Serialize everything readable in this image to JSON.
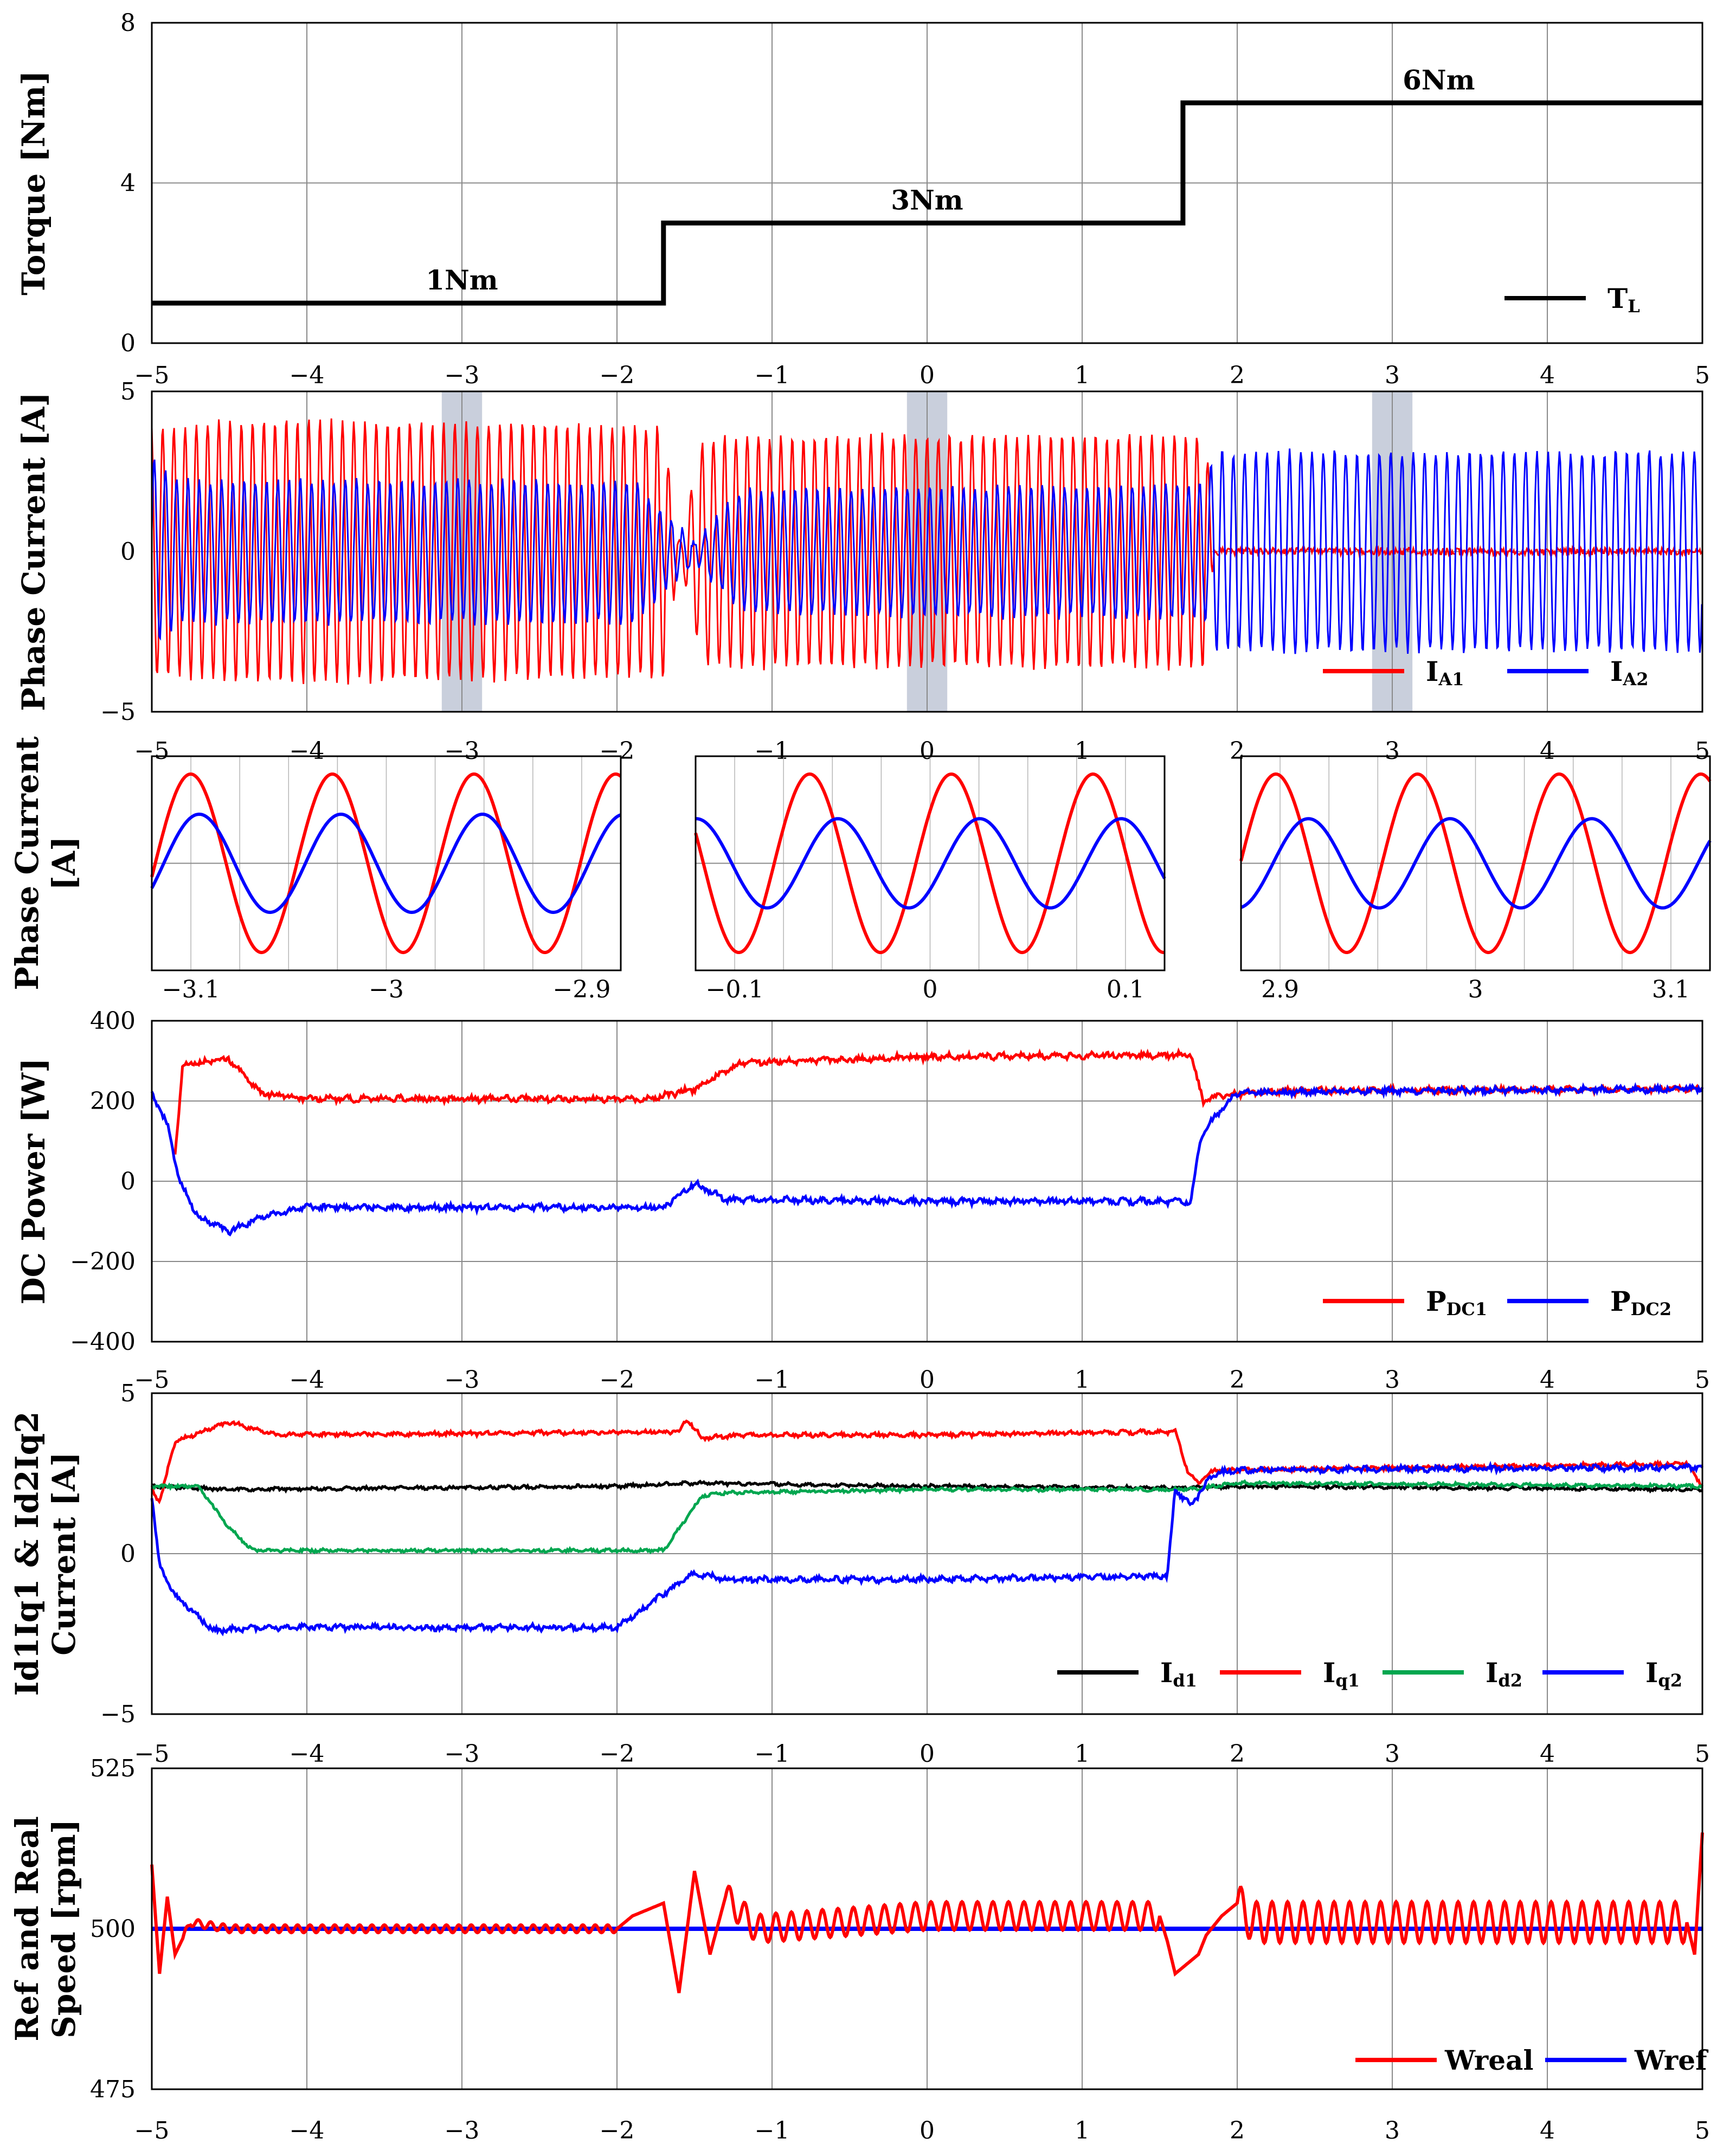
{
  "colors": {
    "red": "#ff0000",
    "blue": "#0000ff",
    "green": "#00a64f",
    "black": "#000000",
    "shade": "#c9cfdc",
    "grid": "#8a8a8a"
  },
  "chart_data": [
    {
      "id": "torque",
      "type": "line",
      "ylabel": "Torque [Nm]",
      "xlim": [
        -5,
        5
      ],
      "ylim": [
        0,
        8
      ],
      "xticks": [
        "−5",
        "−4",
        "−3",
        "−2",
        "−1",
        "0",
        "1",
        "2",
        "3",
        "4",
        "5"
      ],
      "yticks": [
        "0",
        "4",
        "8"
      ],
      "series": [
        {
          "name": "TL",
          "color": "#000000",
          "x": [
            -5,
            -1.7,
            -1.7,
            1.65,
            1.65,
            5
          ],
          "y": [
            1,
            1,
            3,
            3,
            6,
            6
          ]
        }
      ],
      "annotations": [
        {
          "text": "1Nm",
          "x": -3.0,
          "y": 1
        },
        {
          "text": "3Nm",
          "x": 0.0,
          "y": 3
        },
        {
          "text": "6Nm",
          "x": 3.3,
          "y": 6
        }
      ],
      "legend": [
        {
          "main": "T",
          "sub": "L",
          "color": "#000000"
        }
      ]
    },
    {
      "id": "phase",
      "type": "line",
      "ylabel": "Phase Current [A]",
      "xlim": [
        -5,
        5
      ],
      "ylim": [
        -5,
        5
      ],
      "xticks": [
        "−5",
        "−4",
        "−3",
        "−2",
        "−1",
        "0",
        "1",
        "2",
        "3",
        "4",
        "5"
      ],
      "yticks": [
        "−5",
        "0",
        "5"
      ],
      "series": [
        {
          "name": "IA1",
          "color": "#ff0000",
          "amplitude": [
            [
              -4.85,
              3.9
            ],
            [
              -4.5,
              4.1
            ],
            [
              -1.7,
              3.9
            ],
            [
              -1.6,
              0.2
            ],
            [
              -1.45,
              3.5
            ],
            [
              -1.2,
              3.6
            ],
            [
              1.8,
              3.6
            ],
            [
              1.85,
              0
            ]
          ]
        },
        {
          "name": "IA2",
          "color": "#0000ff",
          "amplitude": [
            [
              -5,
              2.9
            ],
            [
              -4.8,
              2.2
            ],
            [
              -1.9,
              2.2
            ],
            [
              -1.5,
              0.3
            ],
            [
              -1.2,
              1.9
            ],
            [
              1.8,
              2.1
            ],
            [
              1.85,
              3.1
            ],
            [
              5,
              3.1
            ]
          ]
        }
      ],
      "highlights": [
        [
          -3.13,
          -2.87
        ],
        [
          -0.13,
          0.13
        ],
        [
          2.87,
          3.13
        ]
      ],
      "legend": [
        {
          "main": "I",
          "sub": "A1",
          "color": "#ff0000"
        },
        {
          "main": "I",
          "sub": "A2",
          "color": "#0000ff"
        }
      ]
    },
    {
      "id": "zoom",
      "type": "line",
      "ylabel": "Phase Current [A]",
      "panels": [
        {
          "xlim": [
            -3.12,
            -2.88
          ],
          "ticks": [
            -3.1,
            -3.0,
            -2.9
          ],
          "tick_labels": [
            "−3.1",
            "−3",
            "−2.9"
          ],
          "red": {
            "amp": 1,
            "period": 0.0725,
            "phase": 0.01
          },
          "blue": {
            "amp": 0.55,
            "period": 0.0725,
            "phase": 0.95
          }
        },
        {
          "xlim": [
            -0.12,
            0.12
          ],
          "ticks": [
            -0.1,
            0.0,
            0.1
          ],
          "tick_labels": [
            "−0.1",
            "0",
            "0.1"
          ],
          "red": {
            "amp": 1,
            "period": 0.0725,
            "phase": 0.1
          },
          "blue": {
            "amp": 0.5,
            "period": 0.0725,
            "phase": 0.9
          }
        },
        {
          "xlim": [
            2.88,
            3.12
          ],
          "ticks": [
            2.9,
            3.0,
            3.1
          ],
          "tick_labels": [
            "2.9",
            "3",
            "3.1"
          ],
          "red": {
            "amp": 1,
            "period": 0.0725,
            "phase": 0.28
          },
          "blue": {
            "amp": 0.5,
            "period": 0.0725,
            "phase": 0.05
          }
        }
      ]
    },
    {
      "id": "dcpower",
      "type": "line",
      "ylabel": "DC Power [W]",
      "xlim": [
        -5,
        5
      ],
      "ylim": [
        -400,
        400
      ],
      "xticks": [
        "−5",
        "−4",
        "−3",
        "−2",
        "−1",
        "0",
        "1",
        "2",
        "3",
        "4",
        "5"
      ],
      "yticks": [
        "−400",
        "−200",
        "0",
        "200",
        "400"
      ],
      "series": [
        {
          "name": "PDC1",
          "color": "#ff0000",
          "x": [
            -4.85,
            -4.8,
            -4.5,
            -4.3,
            -4.0,
            -1.8,
            -1.5,
            -1.2,
            0,
            1.7,
            1.78,
            1.9,
            2.3,
            5
          ],
          "y": [
            70,
            290,
            305,
            220,
            205,
            205,
            230,
            295,
            310,
            315,
            200,
            215,
            225,
            230
          ]
        },
        {
          "name": "PDC2",
          "color": "#0000ff",
          "x": [
            -5,
            -4.9,
            -4.82,
            -4.7,
            -4.5,
            -4.3,
            -4.0,
            -1.7,
            -1.5,
            -1.3,
            0,
            1.7,
            1.76,
            1.85,
            2.0,
            3.0,
            5
          ],
          "y": [
            220,
            140,
            0,
            -90,
            -125,
            -90,
            -65,
            -65,
            -5,
            -45,
            -50,
            -50,
            100,
            160,
            220,
            225,
            230
          ]
        }
      ],
      "legend": [
        {
          "main": "P",
          "sub": "DC1",
          "color": "#ff0000"
        },
        {
          "main": "P",
          "sub": "DC2",
          "color": "#0000ff"
        }
      ]
    },
    {
      "id": "dq",
      "type": "line",
      "ylabel_lines": [
        "Id1Iq1 & Id2Iq2",
        "Current [A]"
      ],
      "xlim": [
        -5,
        5
      ],
      "ylim": [
        -5,
        5
      ],
      "xticks": [
        "−5",
        "−4",
        "−3",
        "−2",
        "−1",
        "0",
        "1",
        "2",
        "3",
        "4",
        "5"
      ],
      "yticks": [
        "−5",
        "0",
        "5"
      ],
      "series": [
        {
          "name": "Id1",
          "color": "#000000",
          "x": [
            -5,
            -4.5,
            -2,
            -1.5,
            0,
            1.6,
            2.0,
            5
          ],
          "y": [
            2.1,
            2.0,
            2.1,
            2.2,
            2.1,
            2.05,
            2.1,
            2.0
          ]
        },
        {
          "name": "Iq1",
          "color": "#ff0000",
          "x": [
            -5,
            -4.95,
            -4.85,
            -4.5,
            -4.2,
            -1.6,
            -1.55,
            -1.45,
            -1.2,
            0,
            1.6,
            1.68,
            1.75,
            1.85,
            2.0,
            4.9,
            5
          ],
          "y": [
            2.0,
            1.6,
            3.5,
            4.1,
            3.7,
            3.8,
            4.2,
            3.6,
            3.7,
            3.7,
            3.8,
            2.6,
            2.2,
            2.6,
            2.6,
            2.8,
            2.1
          ]
        },
        {
          "name": "Id2",
          "color": "#00a64f",
          "x": [
            -5,
            -4.7,
            -4.5,
            -4.35,
            -1.7,
            -1.45,
            -1.3,
            0,
            1.7,
            2.0,
            5
          ],
          "y": [
            2.1,
            2.1,
            0.8,
            0.1,
            0.1,
            1.8,
            1.9,
            2.0,
            2.0,
            2.2,
            2.1
          ]
        },
        {
          "name": "Iq2",
          "color": "#0000ff",
          "x": [
            -5,
            -4.95,
            -4.85,
            -4.6,
            -4.3,
            -2.0,
            -1.8,
            -1.5,
            -1.3,
            0,
            1.55,
            1.6,
            1.7,
            1.85,
            2.0,
            5
          ],
          "y": [
            1.8,
            -0.4,
            -1.3,
            -2.4,
            -2.3,
            -2.3,
            -1.6,
            -0.6,
            -0.8,
            -0.8,
            -0.7,
            2.0,
            1.5,
            2.5,
            2.6,
            2.7
          ]
        }
      ],
      "legend": [
        {
          "main": "I",
          "sub": "d1",
          "color": "#000000"
        },
        {
          "main": "I",
          "sub": "q1",
          "color": "#ff0000"
        },
        {
          "main": "I",
          "sub": "d2",
          "color": "#00a64f"
        },
        {
          "main": "I",
          "sub": "q2",
          "color": "#0000ff"
        }
      ]
    },
    {
      "id": "speed",
      "type": "line",
      "ylabel_lines": [
        "Ref and Real",
        "Speed [rpm]"
      ],
      "xlim": [
        -5,
        5
      ],
      "ylim": [
        475,
        525
      ],
      "xticks": [
        "−5",
        "−4",
        "−3",
        "−2",
        "−1",
        "0",
        "1",
        "2",
        "3",
        "4",
        "5"
      ],
      "yticks": [
        "475",
        "500",
        "525"
      ],
      "series": [
        {
          "name": "Wref",
          "color": "#0000ff",
          "x": [
            -5,
            5
          ],
          "y": [
            500,
            500
          ]
        },
        {
          "name": "Wreal",
          "color": "#ff0000",
          "x": [
            -5,
            -4.95,
            -4.9,
            -4.85,
            -4.75,
            -4.5,
            -2,
            -1.9,
            -1.7,
            -1.6,
            -1.5,
            -1.4,
            -1.3,
            -1.1,
            0,
            1.5,
            1.55,
            1.6,
            1.75,
            1.8,
            1.9,
            2.0,
            2.1,
            4.9,
            4.95,
            5
          ],
          "y": [
            510,
            493,
            505,
            496,
            501,
            500,
            500,
            502,
            504,
            490,
            509,
            496,
            505,
            500,
            502,
            502,
            498,
            493,
            496,
            499,
            502,
            504,
            501,
            501,
            496,
            515
          ]
        }
      ],
      "legend": [
        {
          "text": "Wreal",
          "color": "#ff0000"
        },
        {
          "text": "Wref",
          "color": "#0000ff"
        }
      ]
    }
  ]
}
